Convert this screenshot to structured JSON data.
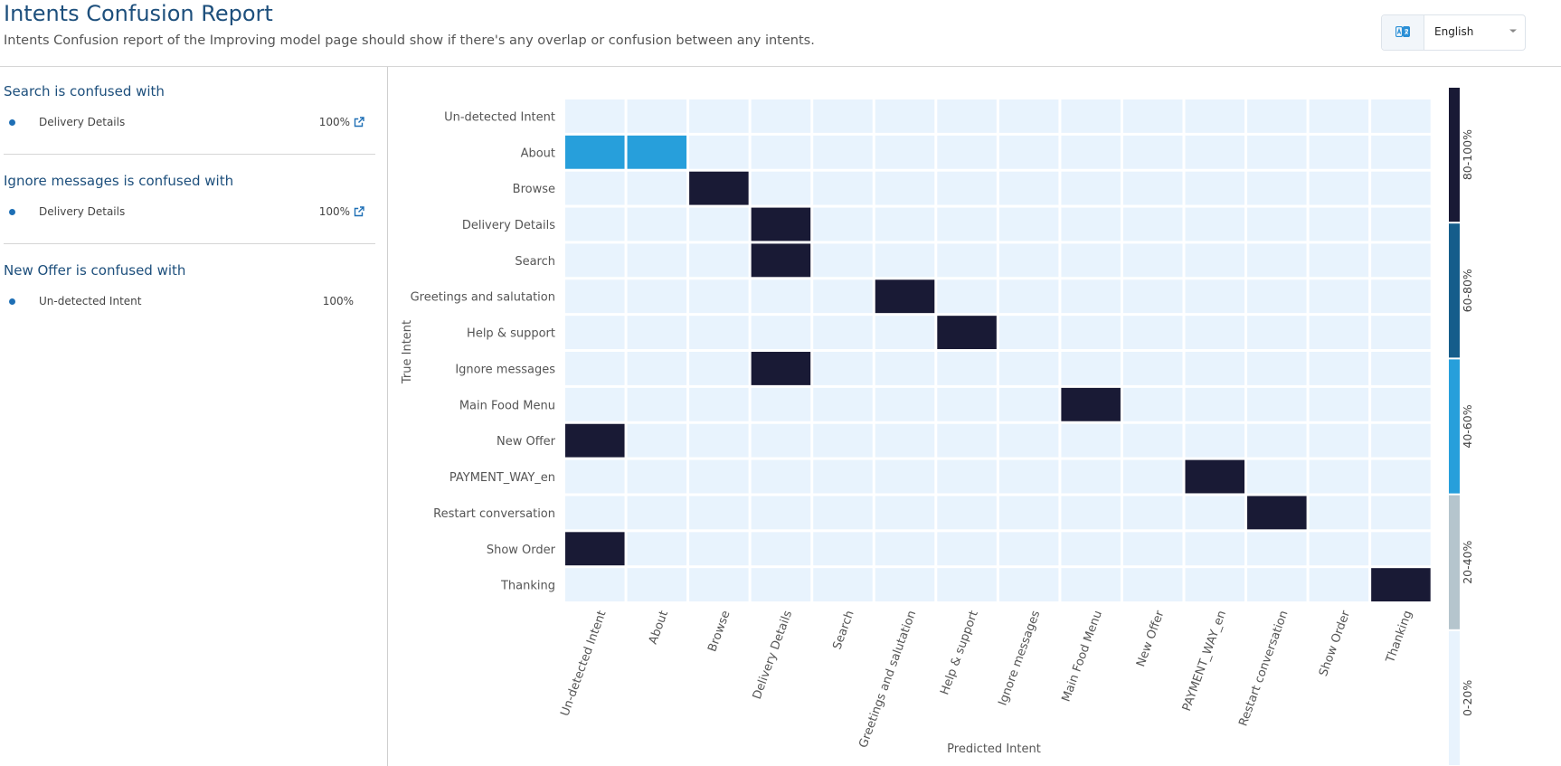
{
  "header": {
    "title": "Intents Confusion Report",
    "subtitle": "Intents Confusion report of the Improving model page should show if there's any overlap or confusion between any intents."
  },
  "language": {
    "selected": "English",
    "icon": "language-icon"
  },
  "sidebar": {
    "groups": [
      {
        "title": "Search is confused with",
        "item": {
          "name": "Delivery Details",
          "percent": "100%",
          "link": true
        }
      },
      {
        "title": "Ignore messages is confused with",
        "item": {
          "name": "Delivery Details",
          "percent": "100%",
          "link": true
        }
      },
      {
        "title": "New Offer is confused with",
        "item": {
          "name": "Un-detected Intent",
          "percent": "100%",
          "link": false
        }
      }
    ]
  },
  "chart_data": {
    "type": "heatmap",
    "xlabel": "Predicted Intent",
    "ylabel": "True Intent",
    "categories": [
      "Un-detected Intent",
      "About",
      "Browse",
      "Delivery Details",
      "Search",
      "Greetings and salutation",
      "Help & support",
      "Ignore messages",
      "Main Food Menu",
      "New Offer",
      "PAYMENT_WAY_en",
      "Restart conversation",
      "Show Order",
      "Thanking"
    ],
    "true_labels": [
      "Un-detected Intent",
      "About",
      "Browse",
      "Delivery Details",
      "Search",
      "Greetings and salutation",
      "Help & support",
      "Ignore messages",
      "Main Food Menu",
      "New Offer",
      "PAYMENT_WAY_en",
      "Restart conversation",
      "Show Order",
      "Thanking"
    ],
    "predicted_labels": [
      "Un-detected Intent",
      "About",
      "Browse",
      "Delivery Details",
      "Search",
      "Greetings and salutation",
      "Help & support",
      "Ignore messages",
      "Main Food Menu",
      "New Offer",
      "PAYMENT_WAY_en",
      "Restart conversation",
      "Show Order",
      "Thanking"
    ],
    "values": [
      [
        0,
        0,
        0,
        0,
        0,
        0,
        0,
        0,
        0,
        0,
        0,
        0,
        0,
        0
      ],
      [
        50,
        50,
        0,
        0,
        0,
        0,
        0,
        0,
        0,
        0,
        0,
        0,
        0,
        0
      ],
      [
        0,
        0,
        100,
        0,
        0,
        0,
        0,
        0,
        0,
        0,
        0,
        0,
        0,
        0
      ],
      [
        0,
        0,
        0,
        100,
        0,
        0,
        0,
        0,
        0,
        0,
        0,
        0,
        0,
        0
      ],
      [
        0,
        0,
        0,
        100,
        0,
        0,
        0,
        0,
        0,
        0,
        0,
        0,
        0,
        0
      ],
      [
        0,
        0,
        0,
        0,
        0,
        100,
        0,
        0,
        0,
        0,
        0,
        0,
        0,
        0
      ],
      [
        0,
        0,
        0,
        0,
        0,
        0,
        100,
        0,
        0,
        0,
        0,
        0,
        0,
        0
      ],
      [
        0,
        0,
        0,
        100,
        0,
        0,
        0,
        0,
        0,
        0,
        0,
        0,
        0,
        0
      ],
      [
        0,
        0,
        0,
        0,
        0,
        0,
        0,
        0,
        100,
        0,
        0,
        0,
        0,
        0
      ],
      [
        100,
        0,
        0,
        0,
        0,
        0,
        0,
        0,
        0,
        0,
        0,
        0,
        0,
        0
      ],
      [
        0,
        0,
        0,
        0,
        0,
        0,
        0,
        0,
        0,
        0,
        100,
        0,
        0,
        0
      ],
      [
        0,
        0,
        0,
        0,
        0,
        0,
        0,
        0,
        0,
        0,
        0,
        100,
        0,
        0
      ],
      [
        100,
        0,
        0,
        0,
        0,
        0,
        0,
        0,
        0,
        0,
        0,
        0,
        0,
        0
      ],
      [
        0,
        0,
        0,
        0,
        0,
        0,
        0,
        0,
        0,
        0,
        0,
        0,
        0,
        100
      ]
    ],
    "legend": {
      "placement": "right",
      "bins": [
        {
          "label": "80-100%",
          "min": 80,
          "max": 100,
          "color": "#191a35"
        },
        {
          "label": "60-80%",
          "min": 60,
          "max": 80,
          "color": "#155d8b"
        },
        {
          "label": "40-60%",
          "min": 40,
          "max": 60,
          "color": "#279fdb"
        },
        {
          "label": "20-40%",
          "min": 20,
          "max": 40,
          "color": "#b5c5cd"
        },
        {
          "label": "0-20%",
          "min": 0,
          "max": 20,
          "color": "#e8f3fd"
        }
      ]
    }
  }
}
